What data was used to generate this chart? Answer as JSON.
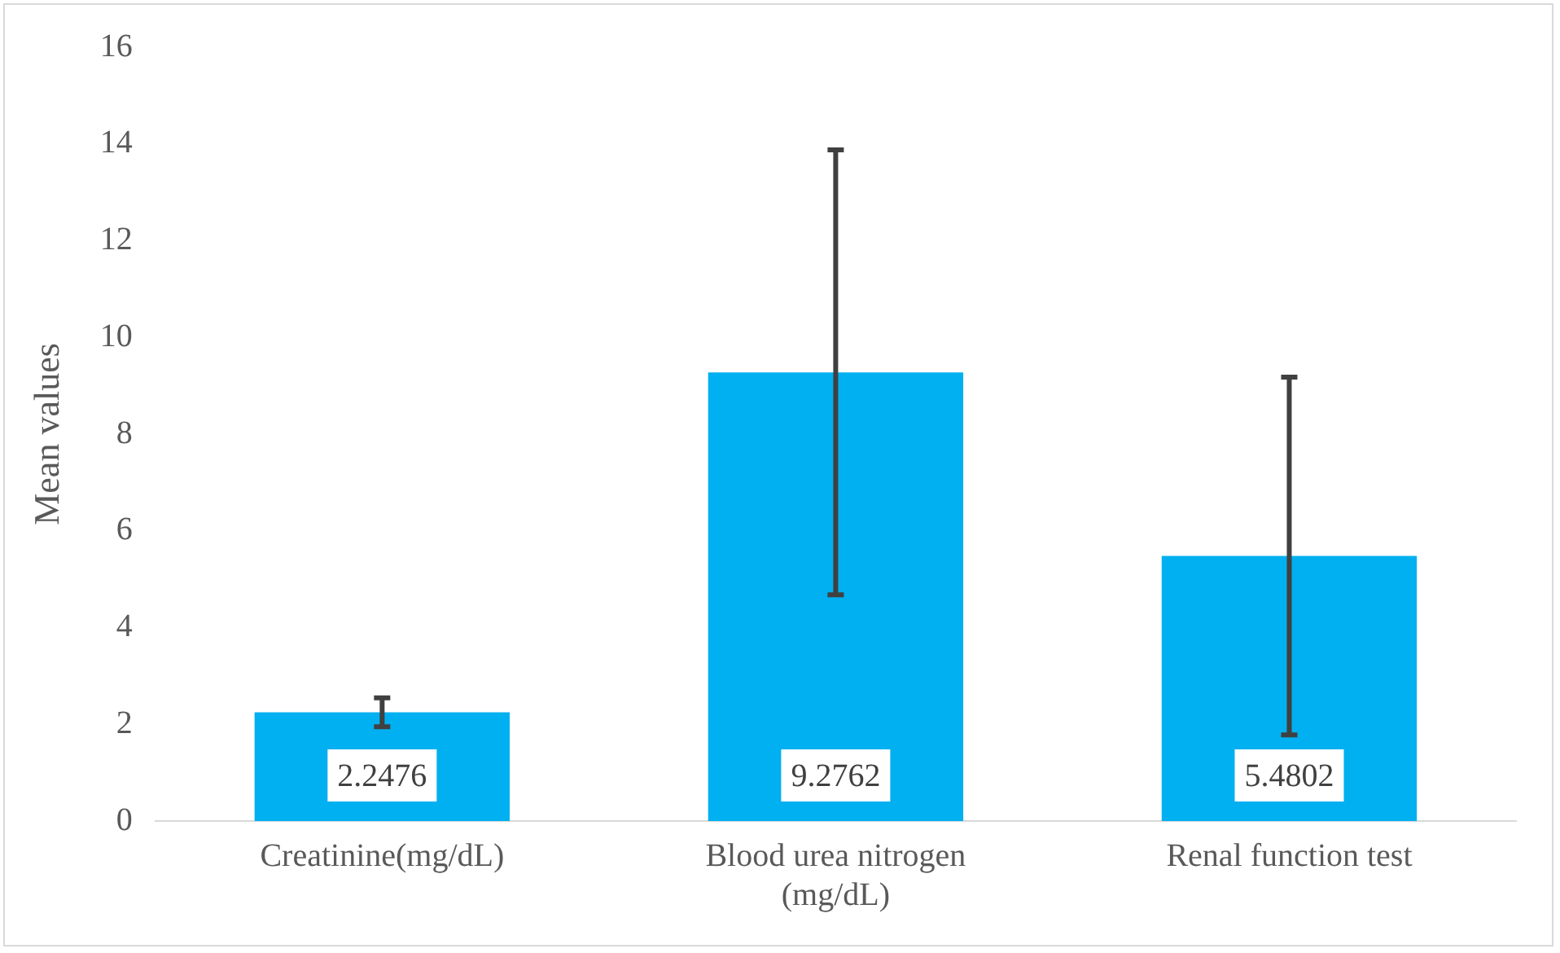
{
  "chart_data": {
    "type": "bar",
    "ylabel": "Mean values",
    "categories": [
      "Creatinine(mg/dL)",
      "Blood urea nitrogen (mg/dL)",
      "Renal function test"
    ],
    "values": [
      2.2476,
      9.2762,
      5.4802
    ],
    "color": "#00b0f0",
    "errors": [
      0.3,
      4.6,
      3.7
    ],
    "data_labels": true,
    "ylim": [
      0,
      16
    ],
    "yticks": [
      0,
      2,
      4,
      6,
      8,
      10,
      12,
      14,
      16
    ],
    "grid": false,
    "legend": false
  }
}
